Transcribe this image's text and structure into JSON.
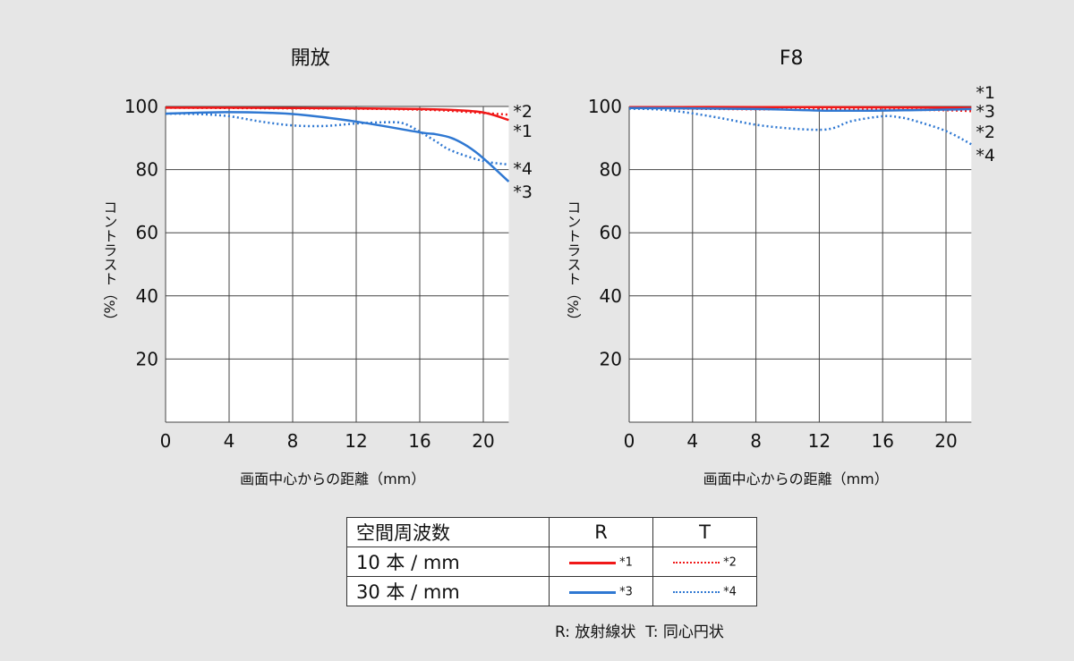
{
  "chart_data": [
    {
      "type": "line",
      "title": "開放",
      "xlabel": "画面中心からの距離（mm）",
      "ylabel": "コントラスト（%）",
      "xlim": [
        0,
        21.6
      ],
      "ylim": [
        0,
        100
      ],
      "xticks": [
        "0",
        "4",
        "8",
        "12",
        "16",
        "20"
      ],
      "yticks": [
        "20",
        "40",
        "60",
        "80",
        "100"
      ],
      "grid": true,
      "series": [
        {
          "name": "*1",
          "color": "#f01818",
          "style": "solid",
          "x": [
            0,
            4,
            8,
            12,
            16,
            18,
            20,
            21.6
          ],
          "y": [
            99.6,
            99.6,
            99.5,
            99.4,
            99.2,
            98.9,
            98.1,
            95.7
          ]
        },
        {
          "name": "*2",
          "color": "#f01818",
          "style": "dotted",
          "x": [
            0,
            4,
            8,
            12,
            16,
            18,
            20,
            21.6
          ],
          "y": [
            99.6,
            99.5,
            99.4,
            99.3,
            99.0,
            98.6,
            97.9,
            97.4
          ]
        },
        {
          "name": "*3",
          "color": "#2f78d2",
          "style": "solid",
          "x": [
            0,
            4,
            8,
            12,
            16,
            17,
            18,
            19,
            20,
            21.6
          ],
          "y": [
            97.7,
            98.2,
            97.6,
            95.2,
            91.8,
            91.2,
            90.0,
            87.4,
            83.6,
            76.2
          ]
        },
        {
          "name": "*4",
          "color": "#2f78d2",
          "style": "dotted",
          "x": [
            0,
            2,
            4,
            6,
            8,
            10,
            12,
            14,
            15,
            16,
            17,
            18,
            20,
            21.6
          ],
          "y": [
            97.7,
            97.6,
            96.9,
            95.2,
            94.0,
            93.8,
            94.6,
            95.0,
            94.6,
            92.0,
            89.0,
            86.0,
            82.7,
            81.6
          ]
        }
      ]
    },
    {
      "type": "line",
      "title": "F8",
      "xlabel": "画面中心からの距離（mm）",
      "ylabel": "コントラスト（%）",
      "xlim": [
        0,
        21.6
      ],
      "ylim": [
        0,
        100
      ],
      "xticks": [
        "0",
        "4",
        "8",
        "12",
        "16",
        "20"
      ],
      "yticks": [
        "20",
        "40",
        "60",
        "80",
        "100"
      ],
      "grid": true,
      "series": [
        {
          "name": "*1",
          "color": "#f01818",
          "style": "solid",
          "x": [
            0,
            8,
            16,
            21.6
          ],
          "y": [
            99.8,
            99.8,
            99.7,
            99.6
          ]
        },
        {
          "name": "*2",
          "color": "#f01818",
          "style": "dotted",
          "x": [
            0,
            8,
            16,
            20,
            21.6
          ],
          "y": [
            99.5,
            99.1,
            99.0,
            98.8,
            98.5
          ]
        },
        {
          "name": "*3",
          "color": "#2f78d2",
          "style": "solid",
          "x": [
            0,
            8,
            12,
            16,
            20,
            21.6
          ],
          "y": [
            99.5,
            99.2,
            98.7,
            98.7,
            99.0,
            99.2
          ]
        },
        {
          "name": "*4",
          "color": "#2f78d2",
          "style": "dotted",
          "x": [
            0,
            2,
            4,
            6,
            8,
            10,
            12,
            13,
            14,
            16,
            17,
            18,
            20,
            21.6
          ],
          "y": [
            99.3,
            99.0,
            97.8,
            96.1,
            94.2,
            93.1,
            92.6,
            93.3,
            95.3,
            96.9,
            96.6,
            95.5,
            92.2,
            88.0
          ]
        }
      ]
    }
  ],
  "end_labels": [
    [
      "*2",
      "*1",
      "*4",
      "*3"
    ],
    [
      "*1",
      "*3",
      "*2",
      "*4"
    ]
  ],
  "legend": {
    "header": [
      "空間周波数",
      "R",
      "T"
    ],
    "rows": [
      {
        "label": "10 本 / mm",
        "r": "*1",
        "t": "*2",
        "color": "#f01818"
      },
      {
        "label": "30 本 / mm",
        "r": "*3",
        "t": "*4",
        "color": "#2f78d2"
      }
    ],
    "note": "R: 放射線状  T: 同心円状"
  }
}
